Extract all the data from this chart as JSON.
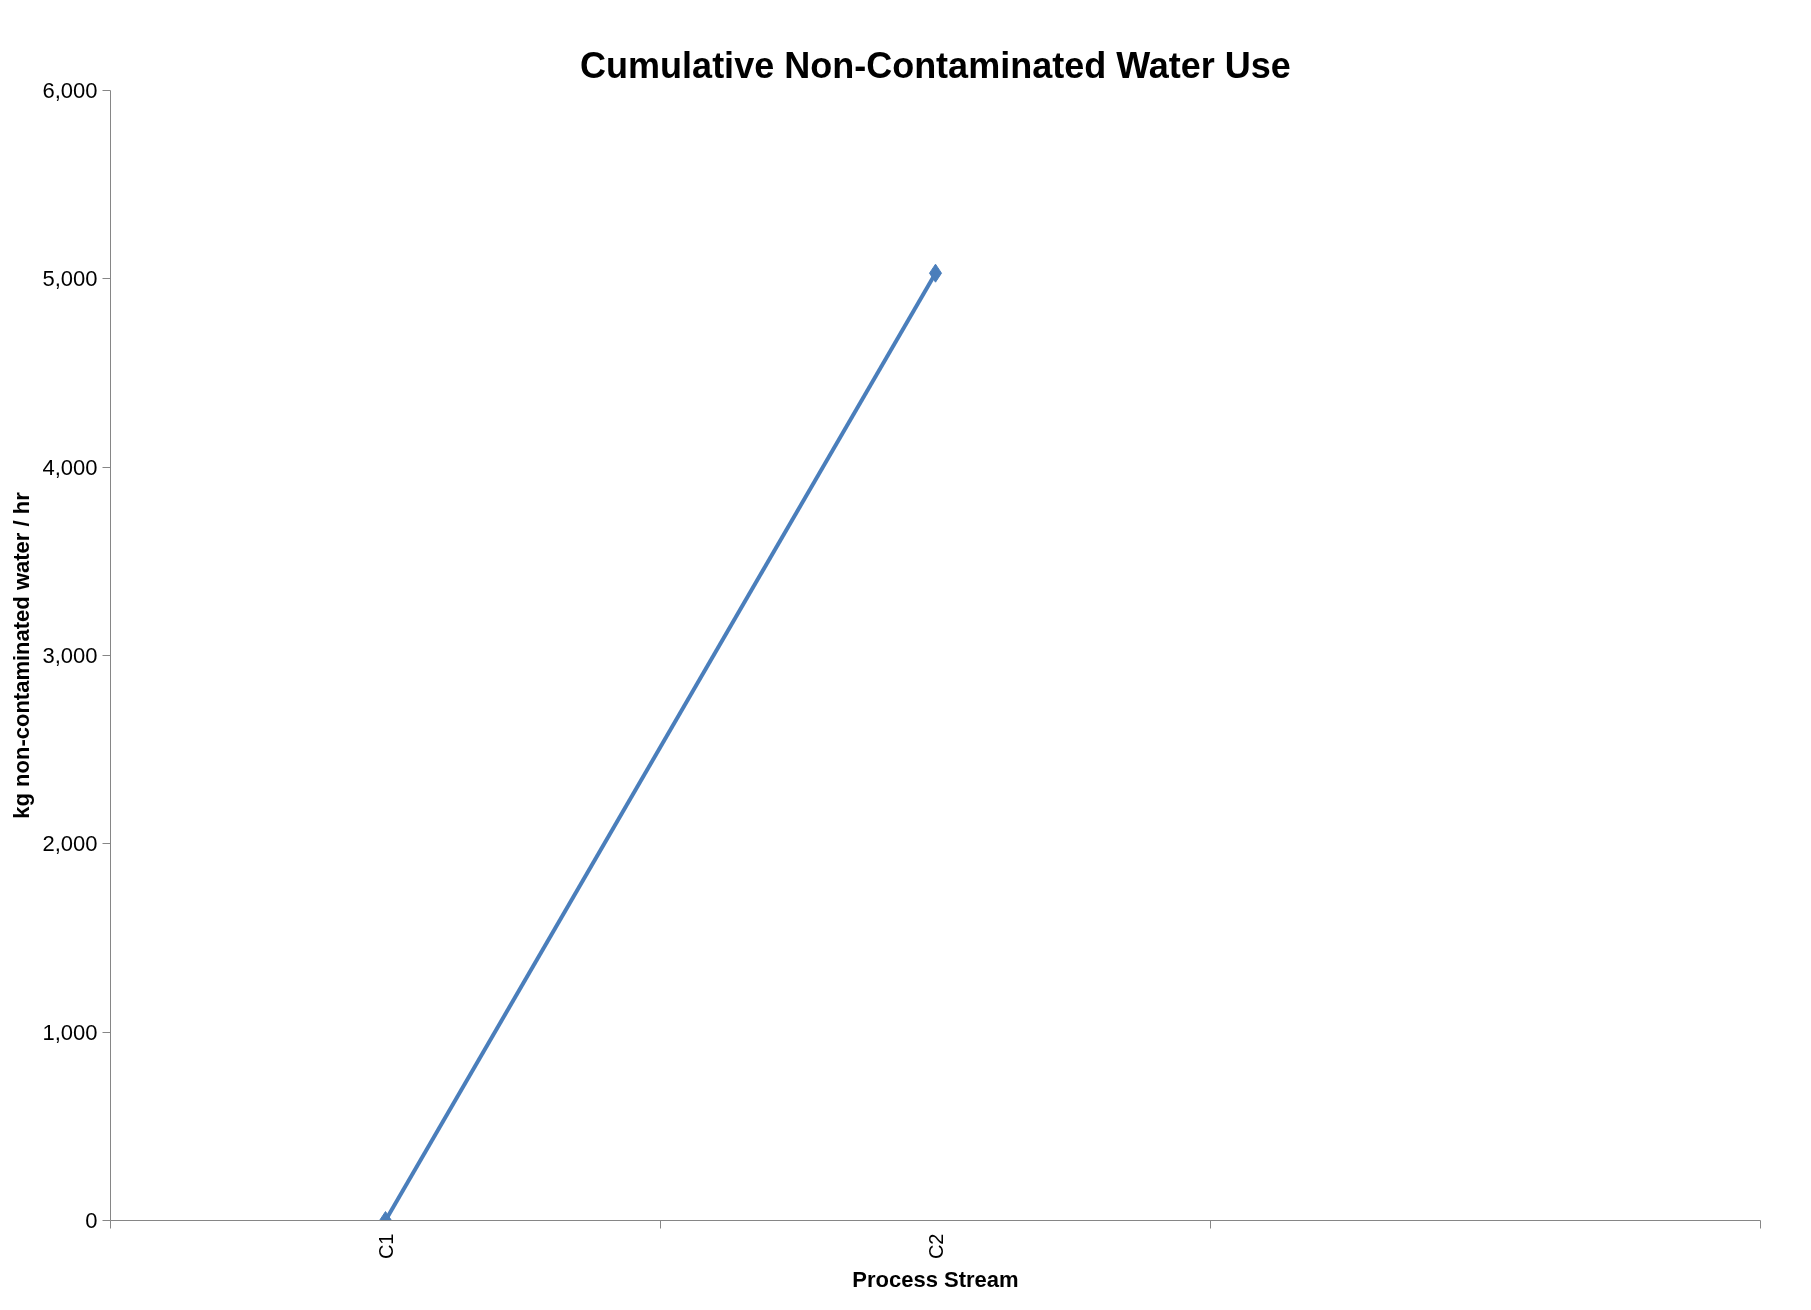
{
  "chart_data": {
    "type": "line",
    "title": "Cumulative Non-Contaminated Water Use",
    "xlabel": "Process Stream",
    "ylabel": "kg non-contaminated water / hr",
    "categories": [
      "C1",
      "C2",
      null
    ],
    "series": [
      {
        "color": "#4a7ebb",
        "values": [
          0,
          5030,
          null
        ]
      }
    ],
    "ylim": [
      0,
      6000
    ],
    "yticks": [
      0,
      {
        "value": 1000,
        "label": "1,000"
      },
      {
        "value": 2000,
        "label": "2,000"
      },
      {
        "value": 3000,
        "label": "3,000"
      },
      {
        "value": 4000,
        "label": "4,000"
      },
      {
        "value": 5000,
        "label": "5,000"
      },
      {
        "value": 6000,
        "label": "6,000"
      }
    ],
    "grid": false,
    "marker": "diamond",
    "line_style": "solid"
  }
}
